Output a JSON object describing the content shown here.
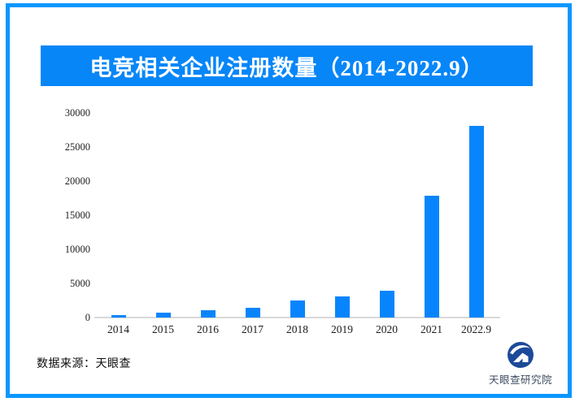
{
  "page": {
    "background_color": "#ffffff",
    "border_color": "#0a97ff"
  },
  "title_bar": {
    "text": "电竞相关企业注册数量（2014-2022.9）",
    "background_color": "#0786f8",
    "text_color": "#ffffff"
  },
  "chart_data": {
    "type": "bar",
    "title": "电竞相关企业注册数量（2014-2022.9）",
    "categories": [
      "2014",
      "2015",
      "2016",
      "2017",
      "2018",
      "2019",
      "2020",
      "2021",
      "2022.9"
    ],
    "values": [
      400,
      700,
      1100,
      1450,
      2450,
      3100,
      3950,
      17900,
      28100
    ],
    "xlabel": "",
    "ylabel": "",
    "ylim": [
      0,
      30000
    ],
    "yticks": [
      0,
      5000,
      10000,
      15000,
      20000,
      25000,
      30000
    ],
    "bar_color": "#0885fc",
    "axis_line_color": "#d9d9d9",
    "grid": false,
    "legend": "none"
  },
  "footer": {
    "source_text": "数据来源：天眼查"
  },
  "logo": {
    "icon": "tianyancha-eye-icon",
    "text": "天眼查研究院",
    "circle_color": "#1c4a99",
    "text_color": "#3e4c60"
  }
}
